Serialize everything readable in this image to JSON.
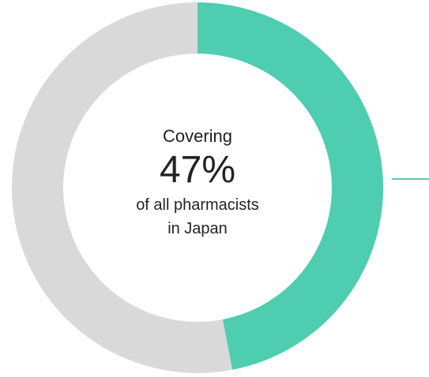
{
  "chart_data": {
    "type": "pie",
    "variant": "donut",
    "title": "",
    "slices": [
      {
        "label": "",
        "value": 47,
        "color": "#4ecdb0"
      },
      {
        "label": "",
        "value": 53,
        "color": "#d9d9d9"
      }
    ],
    "center_text": {
      "line1": "Covering",
      "value": "47%",
      "line2": "of all pharmacists",
      "line3": "in Japan"
    },
    "legend": "none",
    "annotation_line": "right"
  },
  "colors": {
    "accent": "#4ecdb0",
    "remainder": "#d9d9d9",
    "text": "#222222"
  }
}
